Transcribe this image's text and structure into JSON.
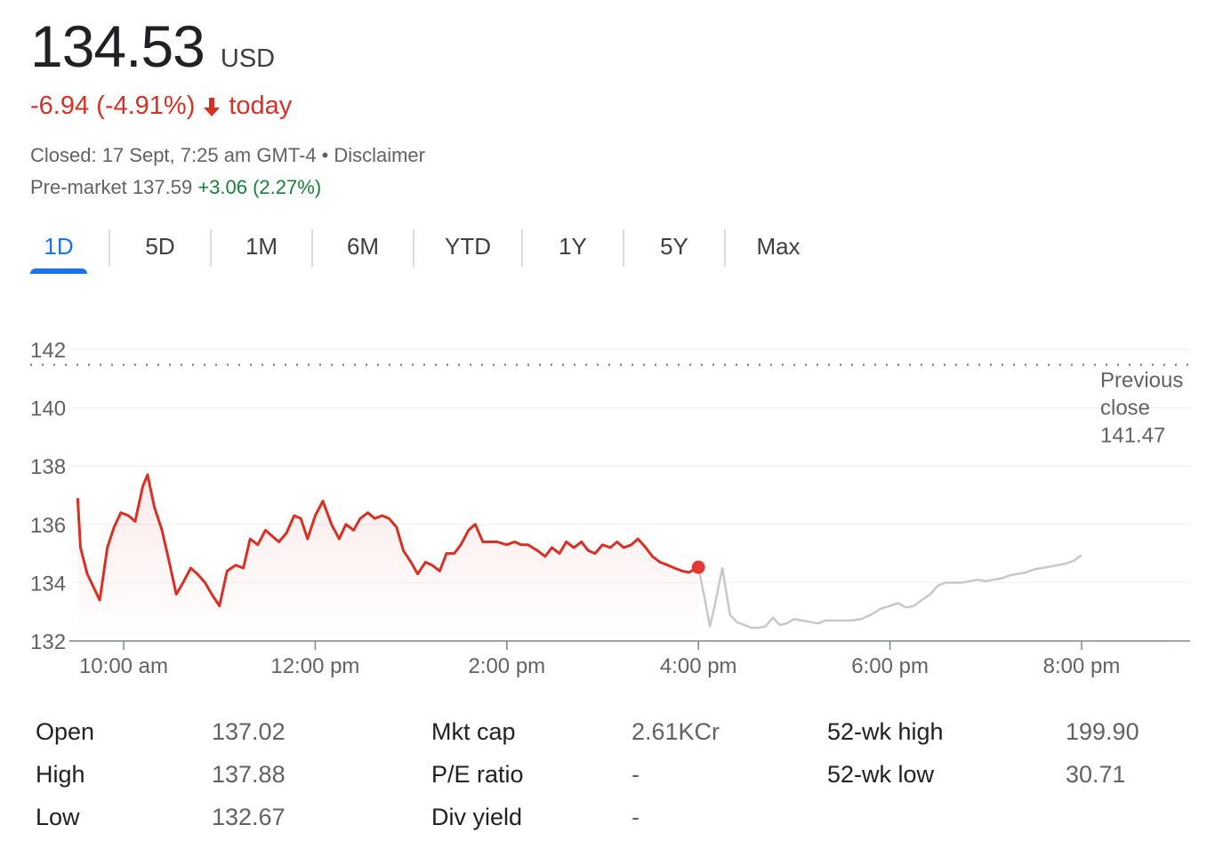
{
  "quote": {
    "price": "134.53",
    "currency": "USD",
    "change": "-6.94 (-4.91%)",
    "change_suffix": "today",
    "closed_text": "Closed: 17 Sept, 7:25 am GMT-4",
    "disclaimer": "Disclaimer",
    "premarket_label": "Pre-market 137.59",
    "premarket_change": "+3.06 (2.27%)"
  },
  "colors": {
    "negative": "#d93025",
    "positive": "#188038",
    "accent": "#1a73e8",
    "after_hours_line": "#c8c8c8"
  },
  "tabs": [
    {
      "label": "1D",
      "active": true
    },
    {
      "label": "5D",
      "active": false
    },
    {
      "label": "1M",
      "active": false
    },
    {
      "label": "6M",
      "active": false
    },
    {
      "label": "YTD",
      "active": false
    },
    {
      "label": "1Y",
      "active": false
    },
    {
      "label": "5Y",
      "active": false
    },
    {
      "label": "Max",
      "active": false
    }
  ],
  "chart_data": {
    "type": "line",
    "ylim": [
      132,
      142
    ],
    "y_ticks": [
      "142",
      "140",
      "138",
      "136",
      "134",
      "132"
    ],
    "x_ticks": [
      "10:00 am",
      "12:00 pm",
      "2:00 pm",
      "4:00 pm",
      "6:00 pm",
      "8:00 pm"
    ],
    "x_tick_hours": [
      10,
      12,
      14,
      16,
      18,
      20
    ],
    "xlim_hours": [
      9.5,
      20.0
    ],
    "previous_close": {
      "value": 141.47,
      "label_lines": [
        "Previous",
        "close",
        "141.47"
      ]
    },
    "marker_hour": 16.0,
    "series": [
      {
        "session": "regular",
        "color": "#d93025",
        "x_hours": [
          9.52,
          9.55,
          9.62,
          9.75,
          9.83,
          9.9,
          9.97,
          10.05,
          10.12,
          10.2,
          10.25,
          10.32,
          10.4,
          10.47,
          10.55,
          10.62,
          10.7,
          10.77,
          10.85,
          10.92,
          11.0,
          11.08,
          11.17,
          11.25,
          11.32,
          11.4,
          11.48,
          11.55,
          11.62,
          11.7,
          11.78,
          11.85,
          11.92,
          12.0,
          12.08,
          12.17,
          12.25,
          12.32,
          12.4,
          12.47,
          12.55,
          12.62,
          12.7,
          12.77,
          12.85,
          12.92,
          13.0,
          13.07,
          13.15,
          13.22,
          13.3,
          13.37,
          13.45,
          13.52,
          13.6,
          13.67,
          13.75,
          13.82,
          13.9,
          14.0,
          14.08,
          14.15,
          14.22,
          14.32,
          14.4,
          14.47,
          14.55,
          14.62,
          14.7,
          14.78,
          14.85,
          14.92,
          15.0,
          15.08,
          15.15,
          15.22,
          15.3,
          15.37,
          15.45,
          15.52,
          15.6,
          15.68,
          15.75,
          15.83,
          15.9,
          16.0
        ],
        "values": [
          136.9,
          135.2,
          134.3,
          133.4,
          135.2,
          135.9,
          136.4,
          136.3,
          136.1,
          137.3,
          137.7,
          136.6,
          135.8,
          134.8,
          133.6,
          134.0,
          134.5,
          134.3,
          134.0,
          133.6,
          133.2,
          134.4,
          134.6,
          134.5,
          135.5,
          135.3,
          135.8,
          135.6,
          135.4,
          135.7,
          136.3,
          136.2,
          135.5,
          136.3,
          136.8,
          136.0,
          135.5,
          136.0,
          135.8,
          136.2,
          136.4,
          136.2,
          136.3,
          136.2,
          135.9,
          135.1,
          134.7,
          134.3,
          134.7,
          134.6,
          134.4,
          135.0,
          135.0,
          135.3,
          135.8,
          136.0,
          135.4,
          135.4,
          135.4,
          135.3,
          135.4,
          135.3,
          135.3,
          135.1,
          134.9,
          135.2,
          135.0,
          135.4,
          135.2,
          135.4,
          135.1,
          135.0,
          135.3,
          135.2,
          135.4,
          135.2,
          135.3,
          135.5,
          135.2,
          134.9,
          134.7,
          134.6,
          134.5,
          134.4,
          134.35,
          134.53
        ]
      },
      {
        "session": "after-hours",
        "color": "#c8c8c8",
        "x_hours": [
          16.0,
          16.07,
          16.12,
          16.17,
          16.25,
          16.33,
          16.4,
          16.48,
          16.55,
          16.62,
          16.7,
          16.78,
          16.85,
          16.92,
          17.0,
          17.08,
          17.17,
          17.25,
          17.33,
          17.42,
          17.5,
          17.6,
          17.7,
          17.8,
          17.9,
          18.0,
          18.08,
          18.17,
          18.25,
          18.33,
          18.42,
          18.5,
          18.58,
          18.67,
          18.75,
          18.83,
          18.92,
          19.0,
          19.08,
          19.17,
          19.25,
          19.33,
          19.42,
          19.5,
          19.58,
          19.67,
          19.75,
          19.83,
          19.92,
          20.0
        ],
        "values": [
          134.53,
          133.4,
          132.5,
          133.2,
          134.5,
          132.9,
          132.65,
          132.55,
          132.45,
          132.45,
          132.5,
          132.8,
          132.55,
          132.6,
          132.75,
          132.7,
          132.65,
          132.6,
          132.7,
          132.7,
          132.7,
          132.7,
          132.75,
          132.9,
          133.1,
          133.2,
          133.3,
          133.15,
          133.2,
          133.4,
          133.6,
          133.9,
          134.0,
          134.0,
          134.0,
          134.05,
          134.1,
          134.05,
          134.1,
          134.15,
          134.25,
          134.3,
          134.35,
          134.45,
          134.5,
          134.55,
          134.6,
          134.65,
          134.75,
          134.95
        ]
      }
    ]
  },
  "stats": [
    {
      "label": "Open",
      "value": "137.02"
    },
    {
      "label": "High",
      "value": "137.88"
    },
    {
      "label": "Low",
      "value": "132.67"
    },
    {
      "label": "Mkt cap",
      "value": "2.61KCr"
    },
    {
      "label": "P/E ratio",
      "value": "-"
    },
    {
      "label": "Div yield",
      "value": "-"
    },
    {
      "label": "52-wk high",
      "value": "199.90"
    },
    {
      "label": "52-wk low",
      "value": "30.71"
    }
  ]
}
